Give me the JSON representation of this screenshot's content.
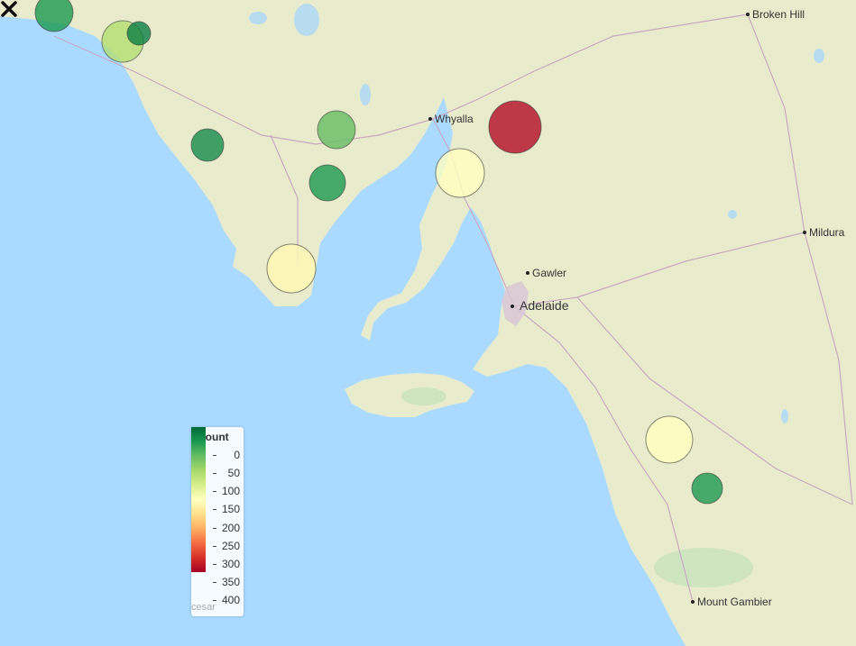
{
  "legend": {
    "title": "Count",
    "ticks": [
      "0",
      "50",
      "100",
      "150",
      "200",
      "250",
      "300",
      "350",
      "400"
    ],
    "gradient": [
      "#006837",
      "#1a9850",
      "#66bd63",
      "#a6d96a",
      "#d9ef8b",
      "#ffffbf",
      "#fee08b",
      "#fdae61",
      "#f46d43",
      "#d73027",
      "#a50026"
    ],
    "min": 0,
    "max": 400
  },
  "attribution": "cesar",
  "cities": [
    {
      "id": "broken-hill",
      "label": "Broken Hill"
    },
    {
      "id": "whyalla",
      "label": "Whyalla"
    },
    {
      "id": "mildura",
      "label": "Mildura"
    },
    {
      "id": "gawler",
      "label": "Gawler"
    },
    {
      "id": "adelaide",
      "label": "Adelaide"
    },
    {
      "id": "mount-gambier",
      "label": "Mount Gambier"
    }
  ],
  "markers": [
    {
      "count": 40
    },
    {
      "count": 130
    },
    {
      "count": 20
    },
    {
      "count": 30
    },
    {
      "count": 80
    },
    {
      "count": 40
    },
    {
      "count": 210
    },
    {
      "count": 390
    },
    {
      "count": 200
    },
    {
      "count": 200
    },
    {
      "count": 40
    }
  ],
  "colors": {
    "water": "#aadaff",
    "land": "#e8eccd",
    "road": "#c9a8c0"
  }
}
